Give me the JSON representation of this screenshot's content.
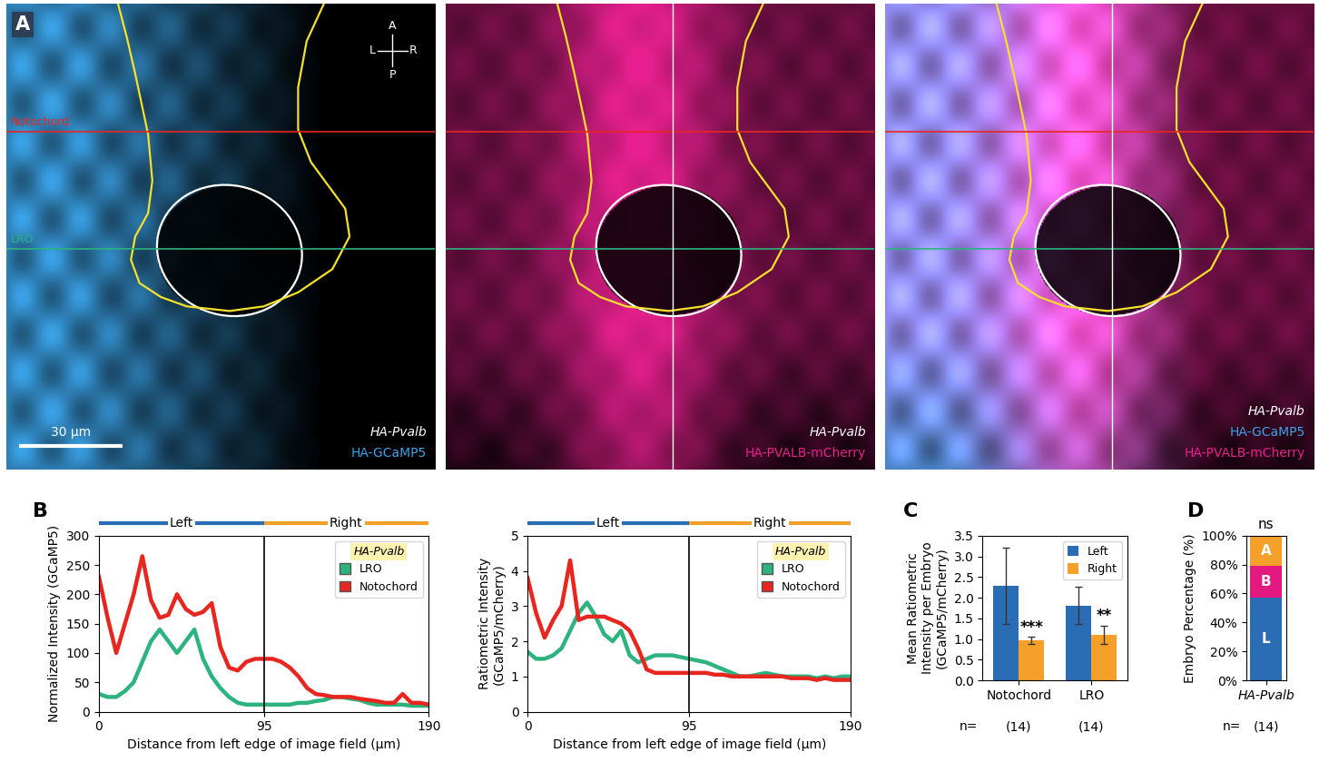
{
  "panel_a": {
    "label": "A",
    "gene": "HA-Pvalb",
    "compass": {
      "up": "A",
      "down": "P",
      "left": "L",
      "right": "R"
    },
    "scale_bar": "30 µm",
    "lines": [
      {
        "name": "Notochord",
        "color": "#e8261f"
      },
      {
        "name": "LRO",
        "color": "#2db37e"
      }
    ],
    "images": [
      {
        "channels": [
          {
            "name": "HA-GCaMP5",
            "color": "#3ba3e8"
          }
        ]
      },
      {
        "channels": [
          {
            "name": "HA-PVALB-mCherry",
            "color": "#e8208f"
          }
        ]
      },
      {
        "channels": [
          {
            "name": "HA-GCaMP5",
            "color": "#3ba3e8"
          },
          {
            "name": "HA-PVALB-mCherry",
            "color": "#e8208f"
          }
        ]
      }
    ]
  },
  "chart_data": [
    {
      "panel": "B",
      "type": "line",
      "x": [
        0,
        5,
        10,
        15,
        20,
        25,
        30,
        35,
        40,
        45,
        50,
        55,
        60,
        65,
        70,
        75,
        80,
        85,
        90,
        95,
        100,
        105,
        110,
        115,
        120,
        125,
        130,
        135,
        140,
        145,
        150,
        155,
        160,
        165,
        170,
        175,
        180,
        185,
        190
      ],
      "series": [
        {
          "name": "LRO",
          "color": "#2db37e",
          "values": [
            30,
            25,
            25,
            35,
            50,
            85,
            120,
            140,
            120,
            100,
            120,
            140,
            90,
            60,
            40,
            25,
            15,
            12,
            12,
            12,
            12,
            12,
            12,
            15,
            15,
            18,
            20,
            25,
            25,
            22,
            20,
            15,
            12,
            12,
            12,
            12,
            10,
            10,
            10
          ]
        },
        {
          "name": "Notochord",
          "color": "#e8261f",
          "values": [
            230,
            160,
            100,
            150,
            200,
            265,
            190,
            160,
            165,
            200,
            175,
            165,
            170,
            185,
            110,
            75,
            70,
            85,
            90,
            90,
            90,
            85,
            75,
            60,
            40,
            30,
            28,
            25,
            25,
            25,
            22,
            20,
            18,
            15,
            15,
            30,
            15,
            15,
            12
          ]
        }
      ],
      "xlabel": "Distance from left edge of image field (µm)",
      "ylabel": "Normalized Intensity (GCaMP5)",
      "xlim": [
        0,
        190
      ],
      "xticks": [
        0,
        95,
        190
      ],
      "ylim": [
        0,
        300
      ],
      "yticks": [
        0,
        50,
        100,
        150,
        200,
        250,
        300
      ],
      "legend": "upper right",
      "legend_title": "HA-Pvalb",
      "divider": 95,
      "sides": [
        {
          "name": "Left",
          "color": "#2a6db5"
        },
        {
          "name": "Right",
          "color": "#f5a02a"
        }
      ]
    },
    {
      "type": "line",
      "x": [
        0,
        5,
        10,
        15,
        20,
        25,
        30,
        35,
        40,
        45,
        50,
        55,
        60,
        65,
        70,
        75,
        80,
        85,
        90,
        95,
        100,
        105,
        110,
        115,
        120,
        125,
        130,
        135,
        140,
        145,
        150,
        155,
        160,
        165,
        170,
        175,
        180,
        185,
        190
      ],
      "series": [
        {
          "name": "LRO",
          "color": "#2db37e",
          "values": [
            1.7,
            1.5,
            1.5,
            1.6,
            1.8,
            2.3,
            2.8,
            3.1,
            2.7,
            2.2,
            2.0,
            2.3,
            1.6,
            1.4,
            1.5,
            1.6,
            1.6,
            1.6,
            1.55,
            1.5,
            1.45,
            1.4,
            1.3,
            1.2,
            1.1,
            1.0,
            1.0,
            1.05,
            1.1,
            1.05,
            1.0,
            1.0,
            1.0,
            1.0,
            0.95,
            1.0,
            0.95,
            1.0,
            1.0
          ]
        },
        {
          "name": "Notochord",
          "color": "#e8261f",
          "values": [
            3.8,
            2.8,
            2.1,
            2.6,
            3.0,
            4.3,
            2.6,
            2.7,
            2.7,
            2.7,
            2.6,
            2.5,
            2.3,
            1.8,
            1.2,
            1.1,
            1.1,
            1.1,
            1.1,
            1.1,
            1.1,
            1.1,
            1.05,
            1.05,
            1.0,
            1.0,
            1.0,
            1.0,
            1.0,
            1.0,
            1.0,
            0.95,
            0.95,
            0.95,
            0.9,
            0.95,
            0.9,
            0.9,
            0.9
          ]
        }
      ],
      "xlabel": "Distance from left edge of image field (µm)",
      "ylabel": "Ratiometric Intensity\n(GCaMP5/mCherry)",
      "xlim": [
        0,
        190
      ],
      "xticks": [
        0,
        95,
        190
      ],
      "ylim": [
        0,
        5
      ],
      "yticks": [
        0,
        1,
        2,
        3,
        4,
        5
      ],
      "legend": "upper right",
      "legend_title": "HA-Pvalb",
      "divider": 95,
      "sides": [
        {
          "name": "Left",
          "color": "#2a6db5"
        },
        {
          "name": "Right",
          "color": "#f5a02a"
        }
      ]
    },
    {
      "panel": "C",
      "type": "bar",
      "categories": [
        "Notochord",
        "LRO"
      ],
      "series": [
        {
          "name": "Left",
          "color": "#2a6db5",
          "values": [
            2.28,
            1.81
          ],
          "errors": [
            0.92,
            0.45
          ]
        },
        {
          "name": "Right",
          "color": "#f5a02a",
          "values": [
            0.97,
            1.11
          ],
          "errors": [
            0.08,
            0.22
          ]
        }
      ],
      "ylabel": "Mean Ratiometric\nIntensity per Embryo\n(GCaMP5/mCherry)",
      "ylim": [
        0,
        3.5
      ],
      "yticks": [
        {
          "value": 0,
          "label": "0.0"
        },
        {
          "value": 0.5,
          "label": "0.5"
        },
        {
          "value": 1,
          "label": "1.0"
        },
        {
          "value": 1.5,
          "label": "1.5"
        },
        {
          "value": 2,
          "label": "2.0"
        },
        {
          "value": 2.5,
          "label": "2.5"
        },
        {
          "value": 3,
          "label": "3.0"
        },
        {
          "value": 3.5,
          "label": "3.5"
        }
      ],
      "legend": "upper right",
      "annotations": [
        {
          "text": "***",
          "category": "Notochord",
          "series": "Right"
        },
        {
          "text": "**",
          "category": "LRO",
          "series": "Right"
        }
      ],
      "sample_size_prefix": "n=",
      "sample_sizes": [
        {
          "value": 14,
          "label": "(14)"
        },
        {
          "value": 14,
          "label": "(14)"
        }
      ]
    },
    {
      "panel": "D",
      "type": "bar",
      "stacked": true,
      "categories": [
        "HA-Pvalb"
      ],
      "series": [
        {
          "name": "L",
          "color": "#2a6db5",
          "values": [
            57
          ]
        },
        {
          "name": "B",
          "color": "#e3197f",
          "values": [
            22
          ]
        },
        {
          "name": "A",
          "color": "#f5a02a",
          "values": [
            21
          ]
        }
      ],
      "ylabel": "Embryo Percentage (%)",
      "ylim": [
        0,
        100
      ],
      "yticks": [
        {
          "value": 0,
          "label": "0%"
        },
        {
          "value": 20,
          "label": "20%"
        },
        {
          "value": 40,
          "label": "40%"
        },
        {
          "value": 60,
          "label": "60%"
        },
        {
          "value": 80,
          "label": "80%"
        },
        {
          "value": 100,
          "label": "100%"
        }
      ],
      "annotations": [
        {
          "text": "ns"
        }
      ],
      "sample_size_prefix": "n=",
      "sample_sizes": [
        {
          "value": 14,
          "label": "(14)"
        }
      ]
    }
  ]
}
